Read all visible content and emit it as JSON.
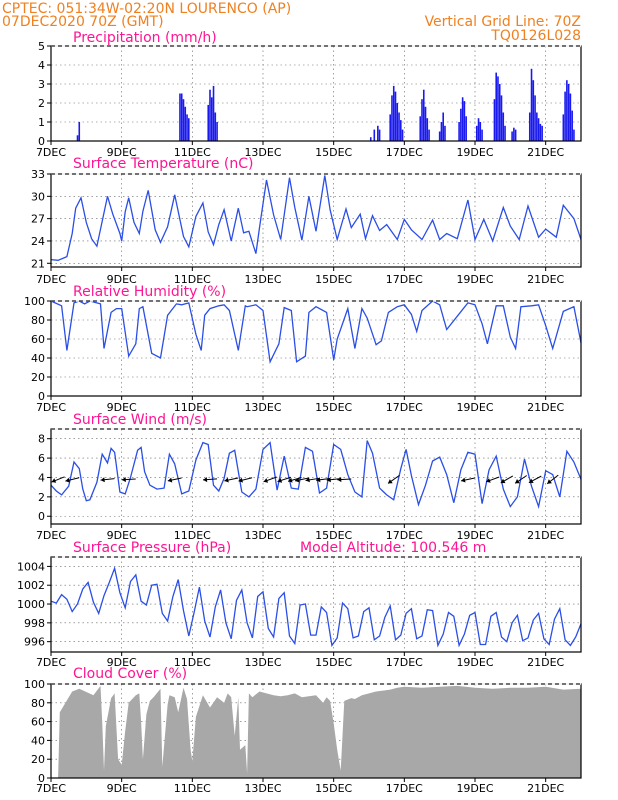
{
  "header": {
    "line1": "CPTEC:   051:34W-02:20N   LOURENCO (AP)",
    "line2": "07DEC2020 70Z (GMT)",
    "grid_note": "Vertical Grid Line: 70Z",
    "code": "TQ0126L028"
  },
  "x_axis": {
    "range_days": [
      0,
      15
    ],
    "ticks": [
      {
        "day": 0,
        "label": "7DEC"
      },
      {
        "day": 2,
        "label": "9DEC"
      },
      {
        "day": 4,
        "label": "11DEC"
      },
      {
        "day": 6,
        "label": "13DEC"
      },
      {
        "day": 8,
        "label": "15DEC"
      },
      {
        "day": 10,
        "label": "17DEC"
      },
      {
        "day": 12,
        "label": "19DEC"
      },
      {
        "day": 14,
        "label": "21DEC"
      }
    ]
  },
  "colors": {
    "series": "#2b4fe6",
    "bars": "#1a1aee",
    "cloud": "#a8a8a8",
    "title": "#ff1493",
    "header": "#f08020"
  },
  "chart_data": [
    {
      "id": "precip",
      "type": "bar",
      "title": "Precipitation  (mm/h)",
      "ylim": [
        0,
        5
      ],
      "yticks": [
        0,
        1,
        2,
        3,
        4,
        5
      ],
      "x": [
        0.75,
        0.8,
        3.65,
        3.7,
        3.75,
        3.8,
        3.85,
        3.9,
        4.45,
        4.5,
        4.55,
        4.6,
        4.65,
        4.7,
        9.05,
        9.15,
        9.25,
        9.3,
        9.6,
        9.65,
        9.7,
        9.75,
        9.8,
        9.85,
        9.9,
        9.95,
        10.45,
        10.5,
        10.55,
        10.6,
        10.65,
        10.7,
        11.0,
        11.05,
        11.1,
        11.15,
        11.55,
        11.6,
        11.65,
        11.7,
        11.75,
        12.05,
        12.1,
        12.15,
        12.2,
        12.55,
        12.6,
        12.65,
        12.7,
        12.75,
        12.8,
        12.85,
        13.05,
        13.1,
        13.15,
        13.55,
        13.6,
        13.65,
        13.7,
        13.75,
        13.8,
        13.85,
        13.9,
        14.5,
        14.55,
        14.6,
        14.65,
        14.7,
        14.75,
        14.8
      ],
      "values": [
        0.3,
        1.0,
        2.5,
        2.5,
        2.2,
        1.8,
        1.4,
        1.2,
        1.9,
        2.7,
        2.3,
        2.9,
        1.5,
        1.0,
        0.2,
        0.6,
        0.8,
        0.6,
        1.4,
        2.4,
        2.9,
        2.6,
        2.0,
        1.5,
        1.1,
        0.6,
        1.3,
        2.2,
        2.7,
        1.8,
        1.2,
        0.6,
        0.5,
        1.0,
        1.5,
        0.8,
        1.0,
        1.7,
        2.3,
        2.1,
        1.3,
        0.8,
        1.2,
        1.0,
        0.6,
        2.2,
        3.6,
        3.4,
        3.0,
        2.4,
        1.5,
        0.8,
        0.5,
        0.7,
        0.6,
        1.5,
        3.8,
        3.2,
        2.4,
        1.5,
        1.2,
        0.9,
        0.8,
        1.4,
        2.6,
        3.2,
        3.0,
        2.5,
        1.6,
        0.6
      ]
    },
    {
      "id": "temperature",
      "type": "line",
      "title": "Surface Temperature  (nC)",
      "ylim": [
        20.5,
        33
      ],
      "yticks": [
        21,
        24,
        27,
        30,
        33
      ],
      "x": [
        0,
        0.2,
        0.45,
        0.6,
        0.7,
        0.85,
        1.0,
        1.15,
        1.3,
        1.5,
        1.6,
        1.75,
        1.95,
        2.0,
        2.1,
        2.2,
        2.35,
        2.5,
        2.6,
        2.75,
        2.95,
        3.1,
        3.3,
        3.5,
        3.75,
        3.9,
        4.1,
        4.3,
        4.45,
        4.6,
        4.75,
        4.9,
        5.1,
        5.3,
        5.45,
        5.6,
        5.8,
        5.9,
        6.1,
        6.3,
        6.5,
        6.75,
        6.9,
        7.1,
        7.3,
        7.5,
        7.75,
        7.9,
        8.1,
        8.35,
        8.5,
        8.75,
        8.9,
        9.1,
        9.3,
        9.5,
        9.8,
        10.0,
        10.2,
        10.5,
        10.8,
        11.0,
        11.2,
        11.5,
        11.8,
        12.0,
        12.25,
        12.5,
        12.8,
        13.0,
        13.25,
        13.5,
        13.8,
        14.0,
        14.3,
        14.5,
        14.8,
        15.0
      ],
      "values": [
        21.5,
        21.4,
        21.9,
        25.0,
        28.4,
        29.8,
        26.5,
        24.3,
        23.3,
        27.8,
        30.0,
        27.6,
        25.0,
        24.0,
        27.9,
        29.8,
        26.5,
        25.0,
        28.0,
        30.8,
        25.5,
        23.8,
        25.9,
        30.2,
        24.6,
        23.2,
        27.3,
        29.1,
        25.2,
        23.5,
        26.2,
        28.2,
        24.0,
        28.4,
        25.1,
        25.3,
        22.3,
        25.8,
        32.2,
        27.5,
        24.2,
        32.5,
        28.5,
        24.1,
        30.0,
        25.3,
        32.8,
        28.2,
        24.2,
        28.3,
        25.8,
        27.6,
        24.3,
        27.4,
        25.4,
        26.2,
        24.2,
        26.9,
        25.5,
        24.2,
        26.8,
        24.2,
        25.0,
        24.3,
        29.5,
        24.2,
        26.9,
        24.0,
        28.5,
        26.0,
        24.2,
        28.7,
        24.5,
        25.6,
        24.5,
        28.8,
        27.0,
        24.2
      ]
    },
    {
      "id": "humidity",
      "type": "line",
      "title": "Relative Humidity  (%)",
      "ylim": [
        0,
        100
      ],
      "yticks": [
        0,
        20,
        40,
        60,
        80,
        100
      ],
      "x": [
        0,
        0.3,
        0.45,
        0.65,
        0.8,
        0.95,
        1.1,
        1.4,
        1.5,
        1.7,
        1.85,
        2.0,
        2.2,
        2.4,
        2.5,
        2.6,
        2.85,
        3.1,
        3.3,
        3.55,
        3.7,
        3.9,
        4.1,
        4.25,
        4.35,
        4.5,
        4.75,
        4.9,
        5.05,
        5.3,
        5.5,
        5.55,
        5.8,
        6.0,
        6.2,
        6.45,
        6.6,
        6.8,
        6.95,
        7.2,
        7.3,
        7.5,
        7.8,
        8.0,
        8.1,
        8.4,
        8.6,
        8.8,
        8.95,
        9.2,
        9.35,
        9.55,
        9.8,
        10.0,
        10.2,
        10.35,
        10.5,
        10.8,
        11.0,
        11.2,
        11.5,
        11.8,
        12.0,
        12.2,
        12.35,
        12.6,
        12.8,
        13.0,
        13.15,
        13.3,
        13.6,
        13.8,
        14.0,
        14.2,
        14.5,
        14.8,
        15.0
      ],
      "values": [
        100,
        95,
        48,
        98,
        100,
        97,
        100,
        97,
        50,
        88,
        92,
        92,
        42,
        55,
        92,
        94,
        45,
        40,
        85,
        97,
        96,
        98,
        65,
        48,
        85,
        92,
        95,
        96,
        90,
        48,
        95,
        94,
        96,
        90,
        36,
        55,
        93,
        90,
        36,
        42,
        88,
        94,
        88,
        38,
        60,
        92,
        50,
        92,
        82,
        54,
        58,
        88,
        94,
        96,
        86,
        68,
        90,
        100,
        96,
        70,
        84,
        98,
        96,
        76,
        55,
        95,
        95,
        62,
        50,
        94,
        95,
        96,
        74,
        50,
        89,
        94,
        56
      ]
    },
    {
      "id": "wind",
      "type": "line",
      "title": "Surface Wind  (m/s)",
      "ylim": [
        -0.8,
        9
      ],
      "yticks": [
        0,
        2,
        4,
        6,
        8
      ],
      "x": [
        0,
        0.15,
        0.3,
        0.5,
        0.65,
        0.8,
        0.9,
        1.0,
        1.1,
        1.3,
        1.45,
        1.6,
        1.7,
        1.8,
        1.95,
        2.1,
        2.25,
        2.45,
        2.55,
        2.65,
        2.8,
        3.0,
        3.2,
        3.35,
        3.5,
        3.7,
        3.9,
        4.1,
        4.3,
        4.45,
        4.6,
        4.75,
        4.9,
        5.05,
        5.2,
        5.4,
        5.6,
        5.8,
        6.0,
        6.2,
        6.4,
        6.6,
        6.8,
        7.0,
        7.2,
        7.4,
        7.6,
        7.8,
        8.0,
        8.2,
        8.4,
        8.6,
        8.8,
        8.95,
        9.1,
        9.3,
        9.5,
        9.7,
        9.9,
        10.05,
        10.2,
        10.4,
        10.6,
        10.8,
        11.0,
        11.2,
        11.4,
        11.6,
        11.8,
        12.0,
        12.2,
        12.4,
        12.6,
        12.8,
        13.0,
        13.2,
        13.4,
        13.6,
        13.8,
        14.0,
        14.2,
        14.4,
        14.6,
        14.8,
        15.0
      ],
      "values": [
        3.2,
        2.6,
        2.2,
        3.1,
        5.6,
        4.9,
        2.8,
        1.6,
        1.7,
        3.5,
        6.4,
        5.5,
        7.0,
        6.6,
        2.5,
        2.3,
        4.0,
        6.8,
        7.1,
        4.6,
        3.2,
        2.8,
        2.9,
        6.4,
        5.4,
        2.3,
        2.6,
        5.8,
        7.6,
        7.4,
        3.2,
        2.6,
        3.9,
        6.5,
        6.8,
        2.5,
        2.0,
        2.8,
        6.9,
        7.6,
        2.7,
        6.2,
        2.9,
        2.8,
        7.1,
        6.7,
        2.4,
        2.9,
        7.4,
        6.9,
        4.3,
        2.5,
        2.0,
        7.8,
        6.5,
        2.9,
        2.2,
        1.7,
        4.9,
        6.9,
        4.2,
        1.2,
        3.2,
        5.7,
        6.1,
        4.3,
        1.4,
        4.8,
        6.6,
        6.4,
        1.3,
        4.8,
        6.2,
        2.8,
        1.0,
        2.0,
        5.9,
        3.1,
        1.0,
        4.7,
        4.3,
        2.0,
        6.7,
        5.6,
        3.8
      ],
      "arrows_x": [
        0.2,
        0.6,
        1.6,
        2.2,
        3.5,
        4.5,
        5.1,
        5.5,
        6.2,
        6.6,
        6.9,
        7.1,
        7.4,
        7.7,
        8.0,
        8.3,
        9.7,
        11.8,
        12.5,
        12.9,
        13.3,
        13.7,
        14.2
      ],
      "arrows_dir_deg": [
        22,
        14,
        6,
        3,
        12,
        4,
        12,
        14,
        20,
        18,
        16,
        12,
        9,
        7,
        6,
        3,
        35,
        12,
        20,
        30,
        34,
        28,
        38
      ]
    },
    {
      "id": "pressure",
      "type": "line",
      "title": "Surface Pressure  (hPa)",
      "annotation": "Model Altitude: 100.546  m",
      "ylim": [
        994.9,
        1005
      ],
      "yticks": [
        996,
        998,
        1000,
        1002,
        1004
      ],
      "x": [
        0,
        0.15,
        0.3,
        0.45,
        0.6,
        0.75,
        0.9,
        1.05,
        1.2,
        1.35,
        1.5,
        1.65,
        1.8,
        1.95,
        2.1,
        2.25,
        2.4,
        2.55,
        2.7,
        2.85,
        3.0,
        3.15,
        3.3,
        3.45,
        3.6,
        3.75,
        3.9,
        4.05,
        4.2,
        4.35,
        4.5,
        4.65,
        4.8,
        4.95,
        5.1,
        5.25,
        5.4,
        5.55,
        5.7,
        5.85,
        6.0,
        6.15,
        6.3,
        6.45,
        6.6,
        6.75,
        6.9,
        7.05,
        7.2,
        7.35,
        7.5,
        7.65,
        7.8,
        7.95,
        8.1,
        8.25,
        8.4,
        8.55,
        8.7,
        8.85,
        9.0,
        9.15,
        9.3,
        9.45,
        9.6,
        9.75,
        9.9,
        10.05,
        10.2,
        10.35,
        10.5,
        10.65,
        10.8,
        10.95,
        11.1,
        11.25,
        11.4,
        11.55,
        11.7,
        11.85,
        12.0,
        12.15,
        12.3,
        12.45,
        12.6,
        12.75,
        12.9,
        13.05,
        13.2,
        13.35,
        13.5,
        13.65,
        13.8,
        13.95,
        14.1,
        14.25,
        14.4,
        14.55,
        14.7,
        14.85,
        15.0
      ],
      "values": [
        1000.3,
        1000.1,
        1001.0,
        1000.5,
        999.2,
        1000.0,
        1001.6,
        1002.3,
        1000.2,
        999.0,
        1000.9,
        1002.3,
        1003.8,
        1001.2,
        999.6,
        1002.4,
        1003.1,
        1000.3,
        999.9,
        1002.0,
        1002.1,
        999.0,
        998.2,
        1000.8,
        1002.6,
        999.3,
        996.6,
        999.1,
        1001.8,
        998.2,
        996.5,
        999.7,
        1001.5,
        998.0,
        996.3,
        1000.4,
        1001.5,
        998.0,
        996.4,
        1000.8,
        1001.3,
        997.4,
        996.5,
        1000.6,
        1001.2,
        996.6,
        995.8,
        999.9,
        1000.0,
        996.7,
        996.7,
        999.7,
        999.1,
        995.6,
        996.4,
        1000.1,
        999.5,
        996.4,
        996.6,
        999.2,
        999.6,
        996.2,
        996.6,
        998.6,
        999.8,
        996.2,
        996.7,
        999.0,
        999.5,
        996.3,
        996.6,
        999.4,
        999.3,
        995.6,
        996.8,
        999.1,
        998.7,
        995.6,
        996.8,
        998.8,
        999.1,
        995.7,
        995.7,
        998.7,
        999.1,
        996.5,
        996.0,
        998.0,
        998.8,
        996.1,
        996.4,
        998.3,
        999.0,
        996.3,
        995.7,
        998.4,
        999.5,
        996.2,
        995.6,
        996.5,
        997.9
      ]
    },
    {
      "id": "cloud",
      "type": "area",
      "title": "Cloud Cover  (%)",
      "ylim": [
        0,
        100
      ],
      "yticks": [
        0,
        20,
        40,
        60,
        80,
        100
      ],
      "x": [
        0,
        0.2,
        0.25,
        0.6,
        0.8,
        1.2,
        1.4,
        1.45,
        1.5,
        1.55,
        1.7,
        1.8,
        1.9,
        2.0,
        2.1,
        2.2,
        2.4,
        2.5,
        2.55,
        2.6,
        2.7,
        2.8,
        2.9,
        3.1,
        3.15,
        3.3,
        3.35,
        3.5,
        3.6,
        3.75,
        3.85,
        3.95,
        4.0,
        4.1,
        4.3,
        4.5,
        4.7,
        4.9,
        5.0,
        5.1,
        5.2,
        5.3,
        5.35,
        5.5,
        5.55,
        5.6,
        5.7,
        5.9,
        6.1,
        6.3,
        6.5,
        6.7,
        6.9,
        7.1,
        7.3,
        7.5,
        7.7,
        7.8,
        7.9,
        8.0,
        8.1,
        8.2,
        8.3,
        8.5,
        8.6,
        8.8,
        9.0,
        9.2,
        9.4,
        9.6,
        9.8,
        10.0,
        10.5,
        11.0,
        11.5,
        12.0,
        12.5,
        13.0,
        13.5,
        14.0,
        14.5,
        15.0
      ],
      "values": [
        0,
        0,
        70,
        92,
        95,
        88,
        98,
        60,
        8,
        55,
        85,
        90,
        20,
        14,
        50,
        80,
        88,
        90,
        60,
        20,
        68,
        82,
        86,
        95,
        12,
        78,
        88,
        86,
        70,
        96,
        84,
        30,
        18,
        65,
        88,
        75,
        86,
        80,
        90,
        86,
        45,
        86,
        30,
        35,
        5,
        90,
        86,
        92,
        90,
        88,
        87,
        88,
        90,
        86,
        87,
        88,
        80,
        86,
        82,
        58,
        30,
        8,
        82,
        85,
        84,
        88,
        90,
        92,
        93,
        94,
        96,
        97,
        96,
        97,
        98,
        96,
        95,
        96,
        96,
        97,
        94,
        95
      ]
    }
  ]
}
